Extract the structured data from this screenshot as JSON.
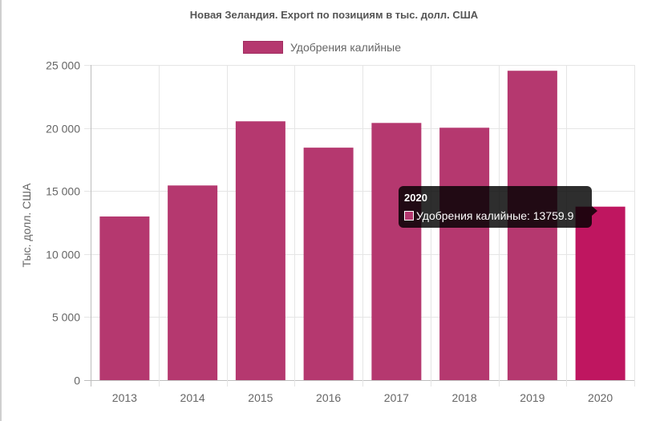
{
  "colors": {
    "bar": "#b5386f",
    "bar_highlight": "#bf1660",
    "grid": "#e5e5e5",
    "text": "#666666"
  },
  "chart_data": {
    "type": "bar",
    "title": "Новая Зеландия. Export по позициям в тыс. долл. США",
    "xlabel": "",
    "ylabel": "Тыс. долл. США",
    "categories": [
      "2013",
      "2014",
      "2015",
      "2016",
      "2017",
      "2018",
      "2019",
      "2020"
    ],
    "series": [
      {
        "name": "Удобрения калийные",
        "values": [
          12980,
          15440,
          20530,
          18440,
          20400,
          20020,
          24540,
          13759.9
        ]
      }
    ],
    "ylim": [
      0,
      25000
    ],
    "yticks": [
      0,
      5000,
      10000,
      15000,
      20000,
      25000
    ],
    "ytick_labels": [
      "0",
      "5 000",
      "10 000",
      "15 000",
      "20 000",
      "25 000"
    ],
    "grid": true,
    "legend_position": "top",
    "highlighted_category": "2020"
  },
  "tooltip": {
    "title": "2020",
    "text": "Удобрения калийные: 13759.9"
  }
}
